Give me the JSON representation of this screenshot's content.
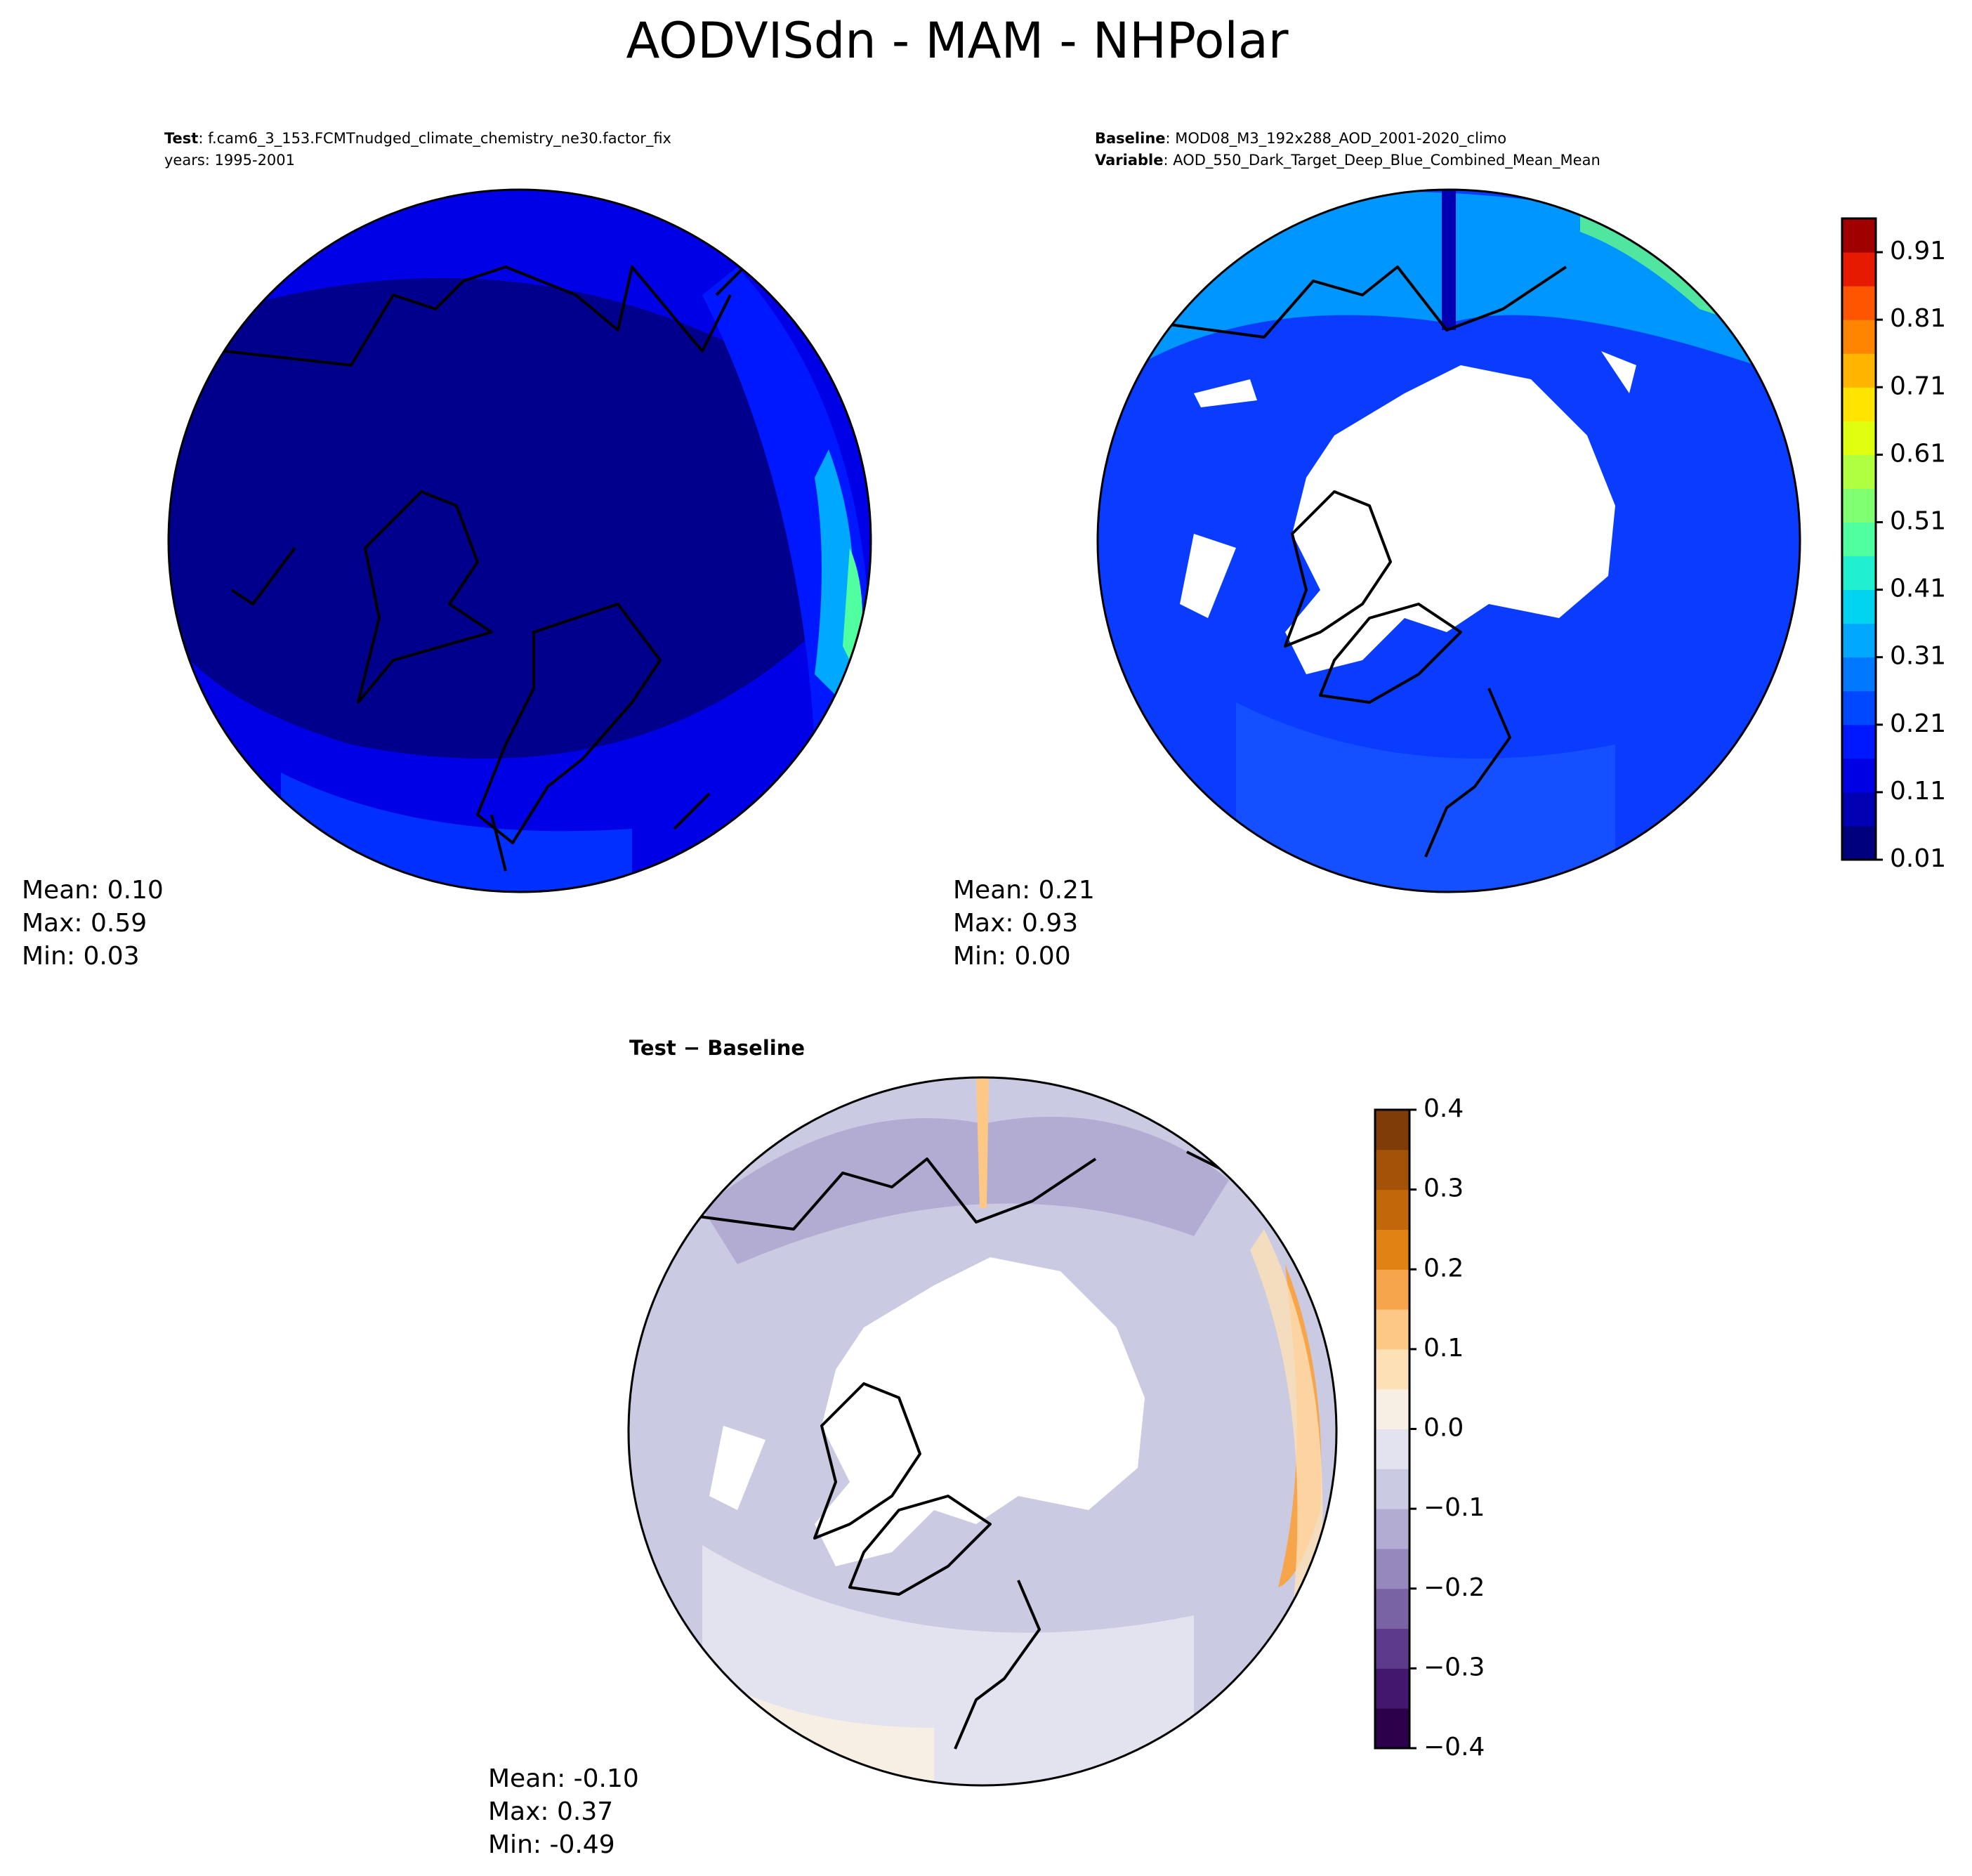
{
  "title": "AODVISdn - MAM - NHPolar",
  "panels": [
    {
      "header": [
        {
          "label": "Test",
          "text": ": f.cam6_3_153.FCMTnudged_climate_chemistry_ne30.factor_fix"
        },
        {
          "text": "years: 1995-2001"
        }
      ],
      "stats": [
        "Mean:  0.10",
        "Max:  0.59",
        "Min:  0.03"
      ]
    },
    {
      "header": [
        {
          "label": "Baseline",
          "text": ": MOD08_M3_192x288_AOD_2001-2020_climo"
        },
        {
          "label": "Variable",
          "text": ": AOD_550_Dark_Target_Deep_Blue_Combined_Mean_Mean"
        }
      ],
      "stats": [
        "Mean:  0.21",
        "Max:  0.93",
        "Min:  0.00"
      ]
    },
    {
      "title": "Test − Baseline",
      "stats": [
        "Mean: -0.10",
        "Max:  0.37",
        "Min: -0.49"
      ]
    }
  ],
  "colorbars": [
    {
      "lim": [
        0.01,
        0.96
      ],
      "ticks": [
        0.01,
        0.11,
        0.21,
        0.31,
        0.41,
        0.51,
        0.61,
        0.71,
        0.81,
        0.91
      ],
      "colors": [
        "#00007f",
        "#0000b2",
        "#0000e5",
        "#0018ff",
        "#0048ff",
        "#0078ff",
        "#00a8ff",
        "#00d4f0",
        "#20f0d0",
        "#50ffa0",
        "#80ff70",
        "#b0ff40",
        "#e0ff10",
        "#ffe400",
        "#ffb400",
        "#ff8400",
        "#ff5400",
        "#e51a00",
        "#a00000"
      ]
    },
    {
      "lim": [
        -0.4,
        0.4
      ],
      "ticks": [
        {
          "value": 0.4,
          "label": "0.4"
        },
        {
          "value": 0.3,
          "label": "0.3"
        },
        {
          "value": 0.2,
          "label": "0.2"
        },
        {
          "value": 0.1,
          "label": "0.1"
        },
        {
          "value": 0,
          "label": "0.0"
        },
        {
          "value": -0.1,
          "label": "−0.1"
        },
        {
          "value": -0.2,
          "label": "−0.2"
        },
        {
          "value": -0.3,
          "label": "−0.3"
        },
        {
          "value": -0.4,
          "label": "−0.4"
        }
      ],
      "colors": [
        "#2d004b",
        "#44176e",
        "#5e3a8c",
        "#7a63a5",
        "#9688bc",
        "#b2abd2",
        "#cacae2",
        "#e3e3ef",
        "#f7efe4",
        "#fee0b6",
        "#fdc785",
        "#f7a54b",
        "#e08214",
        "#c3670b",
        "#a35208",
        "#7f3b08"
      ]
    }
  ]
}
